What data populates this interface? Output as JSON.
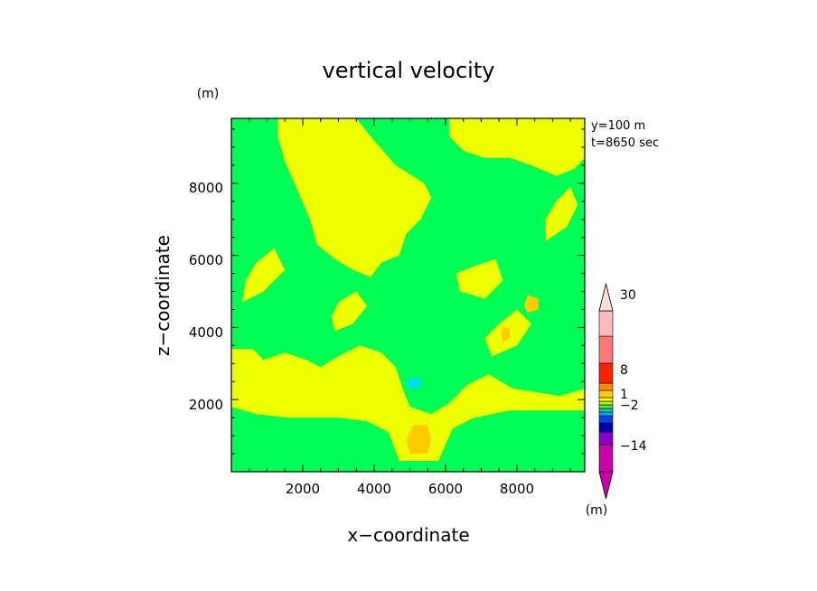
{
  "chart_data": {
    "type": "heatmap",
    "title": "vertical velocity",
    "xlabel": "x−coordinate",
    "ylabel": "z−coordinate",
    "x_unit": "(m)",
    "y_unit": "(m)",
    "annotation_lines": [
      "y=100 m",
      "t=8650 sec"
    ],
    "xlim": [
      0,
      9900
    ],
    "ylim": [
      0,
      9800
    ],
    "xticks": [
      2000,
      4000,
      6000,
      8000
    ],
    "yticks": [
      2000,
      4000,
      6000,
      8000
    ],
    "xtick_labels": [
      "2000",
      "4000",
      "6000",
      "8000"
    ],
    "ytick_labels": [
      "2000",
      "4000",
      "6000",
      "8000"
    ],
    "colorbar": {
      "unit": "(m)",
      "labels": [
        "30",
        "8",
        "1",
        "−2",
        "−14"
      ],
      "bands": [
        {
          "color": "#cc00aa"
        },
        {
          "color": "#8800cc"
        },
        {
          "color": "#0000aa"
        },
        {
          "color": "#0044ee"
        },
        {
          "color": "#00aaff"
        },
        {
          "color": "#00ccaa"
        },
        {
          "color": "#44ee44"
        },
        {
          "color": "#bbee00"
        },
        {
          "color": "#ffff00"
        },
        {
          "color": "#ffcc00"
        },
        {
          "color": "#ff8800"
        },
        {
          "color": "#ff2200"
        },
        {
          "color": "#ff7777"
        },
        {
          "color": "#ffbbbb"
        }
      ]
    },
    "field": {
      "background_color": "#00ff55",
      "regions": [
        {
          "level": "slight updraft",
          "color": "#eeff00",
          "pts": [
            [
              1300,
              9800
            ],
            [
              3500,
              9800
            ],
            [
              3900,
              9300
            ],
            [
              4600,
              8500
            ],
            [
              5400,
              8000
            ],
            [
              5600,
              7600
            ],
            [
              5300,
              7000
            ],
            [
              4900,
              6600
            ],
            [
              4700,
              6000
            ],
            [
              4200,
              5800
            ],
            [
              3900,
              5400
            ],
            [
              3400,
              5600
            ],
            [
              2900,
              5900
            ],
            [
              2400,
              6300
            ],
            [
              2200,
              7000
            ],
            [
              1900,
              7700
            ],
            [
              1500,
              8600
            ],
            [
              1300,
              9300
            ]
          ]
        },
        {
          "level": "slight updraft",
          "color": "#eeff00",
          "pts": [
            [
              6100,
              9800
            ],
            [
              9900,
              9800
            ],
            [
              9900,
              8700
            ],
            [
              9600,
              8400
            ],
            [
              9100,
              8200
            ],
            [
              8400,
              8500
            ],
            [
              7800,
              8700
            ],
            [
              7100,
              8700
            ],
            [
              6500,
              8900
            ],
            [
              6100,
              9300
            ]
          ]
        },
        {
          "level": "slight updraft",
          "color": "#eeff00",
          "pts": [
            [
              0,
              3400
            ],
            [
              600,
              3400
            ],
            [
              900,
              3100
            ],
            [
              1500,
              3300
            ],
            [
              2100,
              3100
            ],
            [
              2500,
              2900
            ],
            [
              3000,
              3200
            ],
            [
              3600,
              3500
            ],
            [
              4200,
              3300
            ],
            [
              4600,
              2900
            ],
            [
              4800,
              2300
            ],
            [
              5000,
              1800
            ],
            [
              5600,
              1600
            ],
            [
              6100,
              1900
            ],
            [
              6600,
              2400
            ],
            [
              7200,
              2700
            ],
            [
              7900,
              2300
            ],
            [
              8600,
              2200
            ],
            [
              9200,
              2100
            ],
            [
              9900,
              2300
            ],
            [
              9900,
              1700
            ],
            [
              7800,
              1700
            ],
            [
              6800,
              1500
            ],
            [
              6200,
              1200
            ],
            [
              5800,
              300
            ],
            [
              4700,
              300
            ],
            [
              4400,
              1100
            ],
            [
              3800,
              1400
            ],
            [
              3000,
              1500
            ],
            [
              1600,
              1500
            ],
            [
              700,
              1600
            ],
            [
              0,
              1800
            ]
          ]
        },
        {
          "level": "slight updraft",
          "color": "#eeff00",
          "pts": [
            [
              6400,
              5000
            ],
            [
              7100,
              4800
            ],
            [
              7600,
              5300
            ],
            [
              7400,
              5900
            ],
            [
              6800,
              5700
            ],
            [
              6300,
              5500
            ]
          ]
        },
        {
          "level": "slight updraft",
          "color": "#eeff00",
          "pts": [
            [
              7300,
              3200
            ],
            [
              8000,
              3500
            ],
            [
              8400,
              4100
            ],
            [
              8000,
              4500
            ],
            [
              7500,
              4100
            ],
            [
              7100,
              3700
            ]
          ]
        },
        {
          "level": "slight updraft",
          "color": "#eeff00",
          "pts": [
            [
              300,
              4700
            ],
            [
              900,
              5000
            ],
            [
              1500,
              5600
            ],
            [
              1200,
              6200
            ],
            [
              700,
              5800
            ],
            [
              400,
              5300
            ]
          ]
        },
        {
          "level": "slight updraft",
          "color": "#eeff00",
          "pts": [
            [
              2900,
              3900
            ],
            [
              3400,
              4100
            ],
            [
              3800,
              4600
            ],
            [
              3500,
              5000
            ],
            [
              3000,
              4700
            ],
            [
              2800,
              4300
            ]
          ]
        },
        {
          "level": "slight updraft",
          "color": "#eeff00",
          "pts": [
            [
              8800,
              6400
            ],
            [
              9400,
              6800
            ],
            [
              9700,
              7400
            ],
            [
              9500,
              7900
            ],
            [
              9100,
              7500
            ],
            [
              8800,
              7000
            ]
          ]
        },
        {
          "level": "updraft",
          "color": "#ffcc00",
          "pts": [
            [
              5000,
              500
            ],
            [
              5500,
              500
            ],
            [
              5600,
              900
            ],
            [
              5500,
              1300
            ],
            [
              5100,
              1300
            ],
            [
              4900,
              900
            ]
          ]
        },
        {
          "level": "updraft",
          "color": "#ffcc00",
          "pts": [
            [
              8300,
              4400
            ],
            [
              8600,
              4500
            ],
            [
              8600,
              4800
            ],
            [
              8300,
              4900
            ],
            [
              8200,
              4600
            ]
          ]
        },
        {
          "level": "updraft",
          "color": "#ffcc00",
          "pts": [
            [
              7600,
              3600
            ],
            [
              7800,
              3700
            ],
            [
              7800,
              4000
            ],
            [
              7600,
              4000
            ],
            [
              7550,
              3800
            ]
          ]
        },
        {
          "level": "downdraft",
          "color": "#00ddee",
          "pts": [
            [
              5000,
              2300
            ],
            [
              5300,
              2350
            ],
            [
              5300,
              2600
            ],
            [
              5000,
              2600
            ],
            [
              4900,
              2450
            ]
          ]
        }
      ]
    }
  }
}
